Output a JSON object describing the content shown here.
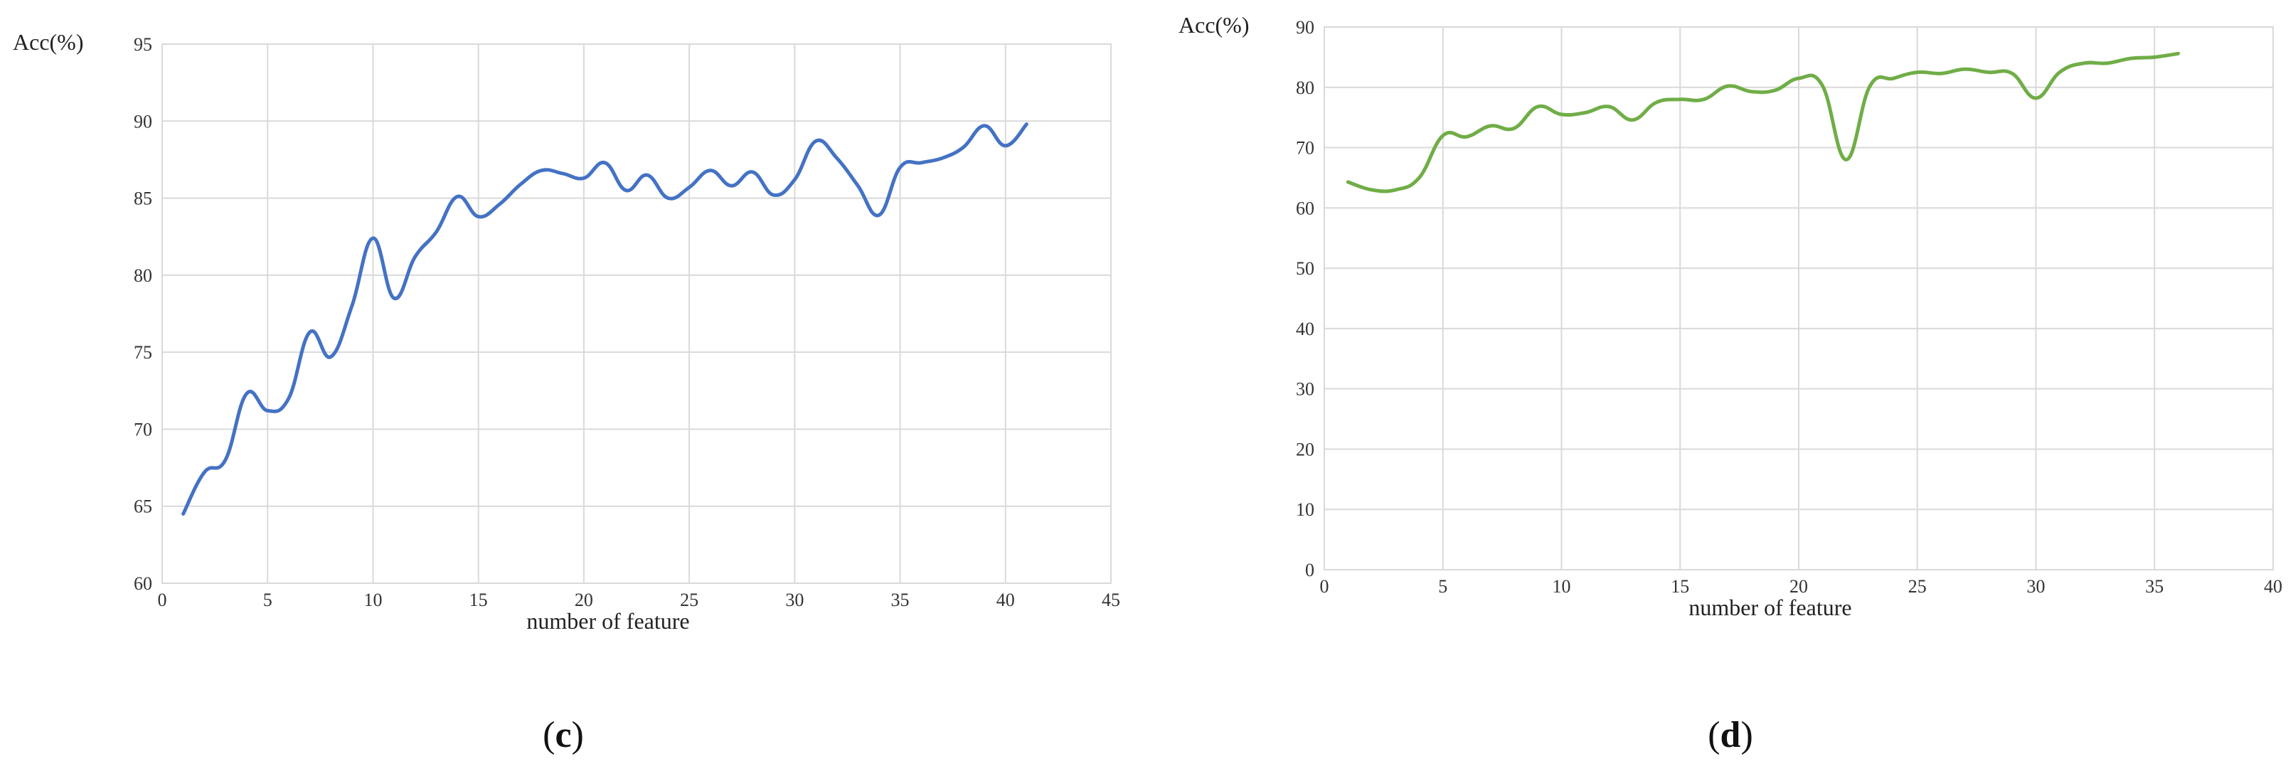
{
  "chart_data": [
    {
      "type": "line",
      "panel_label": "c",
      "title": "",
      "xlabel": "number of feature",
      "ylabel": "Acc(%)",
      "xlim": [
        0,
        45
      ],
      "ylim": [
        60,
        95
      ],
      "xticks": [
        0,
        5,
        10,
        15,
        20,
        25,
        30,
        35,
        40,
        45
      ],
      "yticks": [
        60,
        65,
        70,
        75,
        80,
        85,
        90,
        95
      ],
      "grid": true,
      "legend": "none",
      "series": [
        {
          "color": "#4472C4",
          "x": [
            1,
            2,
            3,
            4,
            5,
            6,
            7,
            8,
            9,
            10,
            11,
            12,
            13,
            14,
            15,
            16,
            17,
            18,
            19,
            20,
            21,
            22,
            23,
            24,
            25,
            26,
            27,
            28,
            29,
            30,
            31,
            32,
            33,
            34,
            35,
            36,
            37,
            38,
            39,
            40,
            41
          ],
          "y": [
            64.5,
            67.2,
            68.0,
            72.3,
            71.2,
            72.0,
            76.3,
            74.7,
            78.0,
            82.4,
            78.5,
            81.2,
            82.8,
            85.1,
            83.8,
            84.6,
            85.9,
            86.8,
            86.6,
            86.3,
            87.3,
            85.5,
            86.5,
            85.0,
            85.7,
            86.8,
            85.8,
            86.7,
            85.2,
            86.2,
            88.7,
            87.6,
            85.8,
            83.9,
            87.0,
            87.3,
            87.6,
            88.3,
            89.7,
            88.4,
            89.8
          ]
        }
      ]
    },
    {
      "type": "line",
      "panel_label": "d",
      "title": "",
      "xlabel": "number of feature",
      "ylabel": "Acc(%)",
      "xlim": [
        0,
        40
      ],
      "ylim": [
        0,
        90
      ],
      "xticks": [
        0,
        5,
        10,
        15,
        20,
        25,
        30,
        35,
        40
      ],
      "yticks": [
        0,
        10,
        20,
        30,
        40,
        50,
        60,
        70,
        80,
        90
      ],
      "grid": true,
      "legend": "none",
      "series": [
        {
          "color": "#70AD47",
          "x": [
            1,
            2,
            3,
            4,
            5,
            6,
            7,
            8,
            9,
            10,
            11,
            12,
            13,
            14,
            15,
            16,
            17,
            18,
            19,
            20,
            21,
            22,
            23,
            24,
            25,
            26,
            27,
            28,
            29,
            30,
            31,
            32,
            33,
            34,
            35,
            36
          ],
          "y": [
            64.3,
            63.0,
            63.0,
            65.0,
            72.0,
            71.8,
            73.6,
            73.2,
            76.8,
            75.5,
            75.8,
            76.8,
            74.6,
            77.5,
            78.0,
            78.0,
            80.2,
            79.3,
            79.5,
            81.5,
            80.3,
            68.0,
            80.2,
            81.5,
            82.5,
            82.3,
            83.0,
            82.5,
            82.3,
            78.2,
            82.5,
            84.0,
            84.0,
            84.8,
            85.0,
            85.6
          ]
        }
      ]
    }
  ]
}
